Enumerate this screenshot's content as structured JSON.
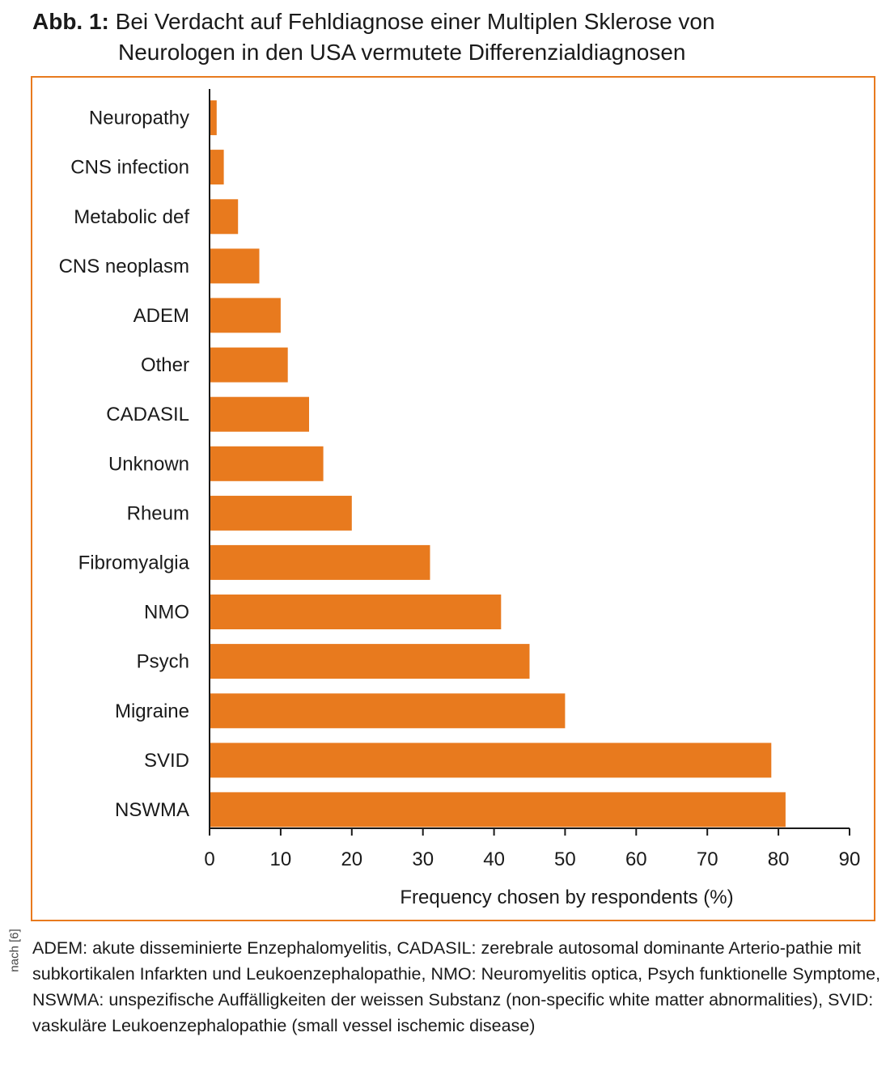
{
  "figure": {
    "label": "Abb. 1:",
    "title_line1": "Bei Verdacht auf Fehldiagnose einer Multiplen Sklerose von",
    "title_line2": "Neurologen in den USA vermutete Differenzialdiagnosen",
    "source": "nach [6]",
    "caption": "ADEM: akute disseminierte Enzephalomyelitis, CADASIL: zerebrale autosomal dominante Arterio-pathie mit subkortikalen Infarkten und Leukoenzephalopathie, NMO: Neuromyelitis optica, Psych funktionelle Symptome, NSWMA: unspezifische Auffälligkeiten der weissen Substanz (non-specific white matter abnormalities), SVID: vaskuläre Leukoenzephalopathie (small vessel ischemic disease)"
  },
  "chart_data": {
    "type": "bar",
    "orientation": "horizontal",
    "categories": [
      "Neuropathy",
      "CNS infection",
      "Metabolic def",
      "CNS neoplasm",
      "ADEM",
      "Other",
      "CADASIL",
      "Unknown",
      "Rheum",
      "Fibromyalgia",
      "NMO",
      "Psych",
      "Migraine",
      "SVID",
      "NSWMA"
    ],
    "values": [
      1,
      2,
      4,
      7,
      10,
      11,
      14,
      16,
      20,
      31,
      41,
      45,
      50,
      79,
      81
    ],
    "xlabel": "Frequency chosen by respondents (%)",
    "xlim": [
      0,
      90
    ],
    "xticks": [
      0,
      10,
      20,
      30,
      40,
      50,
      60,
      70,
      80,
      90
    ],
    "bar_color": "#e87a1e",
    "frame_color": "#e87a1e",
    "grid": false,
    "legend": "none"
  }
}
